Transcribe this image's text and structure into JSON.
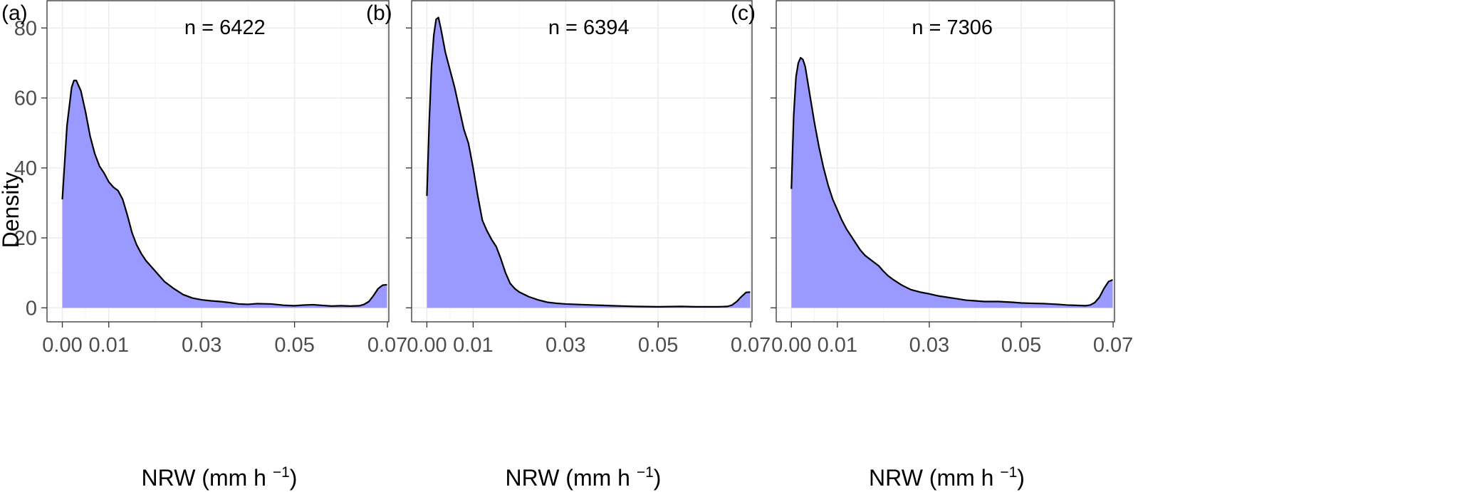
{
  "figure": {
    "y_axis_title": "Density",
    "x_axis_title_main": "NRW (mm h",
    "x_axis_title_sup": "−1",
    "x_axis_title_close": ")"
  },
  "colors": {
    "fill": "#9999ff",
    "line": "#000000"
  },
  "chart_data": [
    {
      "type": "area",
      "panel_label": "(a)",
      "annotation": "n = 6422",
      "xlabel": "NRW (mm h−1)",
      "ylabel": "Density",
      "xlim": [
        -0.0033,
        0.0703
      ],
      "ylim": [
        -4,
        88
      ],
      "xticks": [
        0.0,
        0.01,
        0.03,
        0.05,
        0.07
      ],
      "xtick_labels": [
        "0.00",
        "0.01",
        "0.03",
        "0.05",
        "0.07"
      ],
      "yticks": [
        0,
        20,
        40,
        60,
        80
      ],
      "ytick_labels": [
        "0",
        "20",
        "40",
        "60",
        "80"
      ],
      "grid": true,
      "series": [
        {
          "x": [
            0.0,
            0.001,
            0.002,
            0.0025,
            0.003,
            0.004,
            0.005,
            0.006,
            0.007,
            0.008,
            0.009,
            0.01,
            0.011,
            0.012,
            0.013,
            0.014,
            0.015,
            0.016,
            0.017,
            0.018,
            0.02,
            0.022,
            0.024,
            0.026,
            0.028,
            0.03,
            0.032,
            0.034,
            0.036,
            0.038,
            0.04,
            0.042,
            0.045,
            0.048,
            0.05,
            0.052,
            0.054,
            0.056,
            0.058,
            0.06,
            0.062,
            0.064,
            0.065,
            0.066,
            0.067,
            0.068,
            0.069,
            0.0699
          ],
          "y": [
            31,
            52,
            63,
            65,
            65,
            62,
            56,
            49,
            44,
            40.5,
            38.5,
            36,
            34.5,
            33.5,
            31,
            26.5,
            21.5,
            18,
            15.5,
            13.5,
            10.5,
            7.5,
            5.5,
            3.8,
            2.8,
            2.3,
            2.0,
            1.8,
            1.5,
            1.1,
            1.0,
            1.2,
            1.1,
            0.7,
            0.6,
            0.8,
            0.9,
            0.7,
            0.5,
            0.6,
            0.5,
            0.6,
            1.0,
            1.8,
            3.5,
            5.5,
            6.5,
            6.6
          ]
        }
      ]
    },
    {
      "type": "area",
      "panel_label": "(b)",
      "annotation": "n = 6394",
      "xlabel": "NRW (mm h−1)",
      "ylabel": "",
      "xlim": [
        -0.0033,
        0.0703
      ],
      "ylim": [
        -4,
        88
      ],
      "xticks": [
        0.0,
        0.01,
        0.03,
        0.05,
        0.07
      ],
      "xtick_labels": [
        "0.00",
        "0.01",
        "0.03",
        "0.05",
        "0.07"
      ],
      "yticks": [
        0,
        20,
        40,
        60,
        80
      ],
      "grid": true,
      "series": [
        {
          "x": [
            0.0,
            0.0005,
            0.001,
            0.0015,
            0.002,
            0.0025,
            0.003,
            0.004,
            0.005,
            0.006,
            0.007,
            0.008,
            0.009,
            0.01,
            0.011,
            0.012,
            0.013,
            0.014,
            0.015,
            0.016,
            0.017,
            0.018,
            0.019,
            0.02,
            0.022,
            0.024,
            0.026,
            0.028,
            0.03,
            0.032,
            0.034,
            0.036,
            0.038,
            0.04,
            0.045,
            0.05,
            0.055,
            0.058,
            0.06,
            0.063,
            0.065,
            0.066,
            0.067,
            0.068,
            0.069,
            0.0699
          ],
          "y": [
            32,
            53,
            69,
            78,
            82.5,
            83,
            80,
            73,
            68,
            63,
            57,
            51,
            47,
            40,
            32,
            25,
            22,
            19.5,
            17.5,
            14,
            10,
            7,
            5.5,
            4.5,
            3.2,
            2.3,
            1.6,
            1.3,
            1.1,
            1.0,
            0.9,
            0.8,
            0.7,
            0.6,
            0.4,
            0.3,
            0.4,
            0.3,
            0.3,
            0.3,
            0.4,
            0.8,
            1.8,
            3.2,
            4.4,
            4.5
          ]
        }
      ]
    },
    {
      "type": "area",
      "panel_label": "(c)",
      "annotation": "n = 7306",
      "xlabel": "NRW (mm h−1)",
      "ylabel": "",
      "xlim": [
        -0.0033,
        0.0703
      ],
      "ylim": [
        -4,
        88
      ],
      "xticks": [
        0.0,
        0.01,
        0.03,
        0.05,
        0.07
      ],
      "xtick_labels": [
        "0.00",
        "0.01",
        "0.03",
        "0.05",
        "0.07"
      ],
      "yticks": [
        0,
        20,
        40,
        60,
        80
      ],
      "grid": true,
      "series": [
        {
          "x": [
            0.0,
            0.0005,
            0.001,
            0.0015,
            0.002,
            0.0025,
            0.003,
            0.004,
            0.005,
            0.006,
            0.007,
            0.008,
            0.009,
            0.01,
            0.011,
            0.012,
            0.013,
            0.014,
            0.015,
            0.016,
            0.017,
            0.018,
            0.019,
            0.02,
            0.021,
            0.022,
            0.024,
            0.026,
            0.028,
            0.03,
            0.032,
            0.034,
            0.036,
            0.038,
            0.04,
            0.042,
            0.045,
            0.048,
            0.05,
            0.052,
            0.055,
            0.058,
            0.06,
            0.062,
            0.064,
            0.065,
            0.066,
            0.067,
            0.068,
            0.069,
            0.0699
          ],
          "y": [
            34,
            55,
            66,
            70,
            71.5,
            71,
            69,
            61,
            53,
            46,
            40,
            35,
            31,
            28,
            25,
            22.5,
            20.5,
            18.5,
            16.5,
            15,
            14,
            13,
            12,
            10.5,
            9.2,
            8.2,
            6.5,
            5.2,
            4.5,
            4.0,
            3.4,
            3.0,
            2.6,
            2.2,
            2.0,
            1.8,
            1.8,
            1.6,
            1.4,
            1.3,
            1.2,
            1.0,
            0.8,
            0.7,
            0.6,
            0.8,
            1.5,
            3.0,
            5.5,
            7.5,
            8.0
          ]
        }
      ]
    }
  ]
}
